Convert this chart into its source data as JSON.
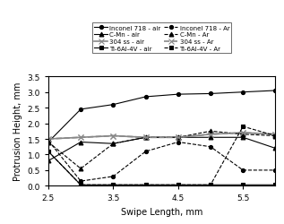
{
  "x": [
    2.5,
    3.0,
    3.5,
    4.0,
    4.5,
    5.0,
    5.5,
    6.0
  ],
  "series": {
    "Inconel 718 - air": {
      "y": [
        1.4,
        2.45,
        2.6,
        2.85,
        2.93,
        2.95,
        3.0,
        3.05
      ],
      "color": "#000000",
      "linestyle": "-",
      "marker": "o",
      "linewidth": 0.8,
      "markersize": 3.0
    },
    "C-Mn - air": {
      "y": [
        0.8,
        1.4,
        1.35,
        1.55,
        1.55,
        1.55,
        1.55,
        1.2
      ],
      "color": "#000000",
      "linestyle": "-",
      "marker": "^",
      "linewidth": 0.8,
      "markersize": 3.5
    },
    "304 ss - air": {
      "y": [
        1.5,
        1.55,
        1.6,
        1.55,
        1.55,
        1.65,
        1.7,
        1.65
      ],
      "color": "#888888",
      "linestyle": "-",
      "marker": "x",
      "linewidth": 1.2,
      "markersize": 4.5
    },
    "Ti-6Al-4V - air": {
      "y": [
        1.1,
        0.03,
        0.03,
        0.03,
        0.03,
        0.03,
        0.03,
        0.03
      ],
      "color": "#000000",
      "linestyle": "-",
      "marker": "s",
      "linewidth": 0.8,
      "markersize": 3.0
    },
    "Inconel 718 - Ar": {
      "y": [
        1.45,
        0.15,
        0.3,
        1.1,
        1.4,
        1.25,
        0.5,
        0.5
      ],
      "color": "#000000",
      "linestyle": "--",
      "marker": "o",
      "linewidth": 0.8,
      "markersize": 3.0
    },
    "C-Mn - Ar": {
      "y": [
        1.4,
        0.55,
        1.35,
        1.55,
        1.55,
        1.75,
        1.65,
        1.6
      ],
      "color": "#000000",
      "linestyle": "--",
      "marker": "^",
      "linewidth": 0.8,
      "markersize": 3.5
    },
    "304 ss - Ar": {
      "y": [
        1.5,
        1.55,
        1.6,
        1.55,
        1.55,
        1.65,
        1.7,
        1.65
      ],
      "color": "#888888",
      "linestyle": "--",
      "marker": "x",
      "linewidth": 1.2,
      "markersize": 4.5
    },
    "Ti-6Al-4V - Ar": {
      "y": [
        1.1,
        0.03,
        0.03,
        0.03,
        0.03,
        0.03,
        1.9,
        1.6
      ],
      "color": "#000000",
      "linestyle": "--",
      "marker": "s",
      "linewidth": 0.8,
      "markersize": 3.0
    }
  },
  "xlabel": "Swipe Length, mm",
  "ylabel": "Protrusion Height, mm",
  "ylim": [
    0,
    3.5
  ],
  "xlim": [
    2.5,
    6.0
  ],
  "xticks": [
    2.5,
    3.5,
    4.5,
    5.5
  ],
  "yticks": [
    0,
    0.5,
    1.0,
    1.5,
    2.0,
    2.5,
    3.0,
    3.5
  ],
  "legend_order": [
    "Inconel 718 - air",
    "C-Mn - air",
    "304 ss - air",
    "Ti-6Al-4V - air",
    "Inconel 718 - Ar",
    "C-Mn - Ar",
    "304 ss - Ar",
    "Ti-6Al-4V - Ar"
  ],
  "legend_ncol": 2,
  "legend_fontsize": 5.0,
  "xlabel_fontsize": 7,
  "ylabel_fontsize": 7,
  "tick_fontsize": 6.5
}
